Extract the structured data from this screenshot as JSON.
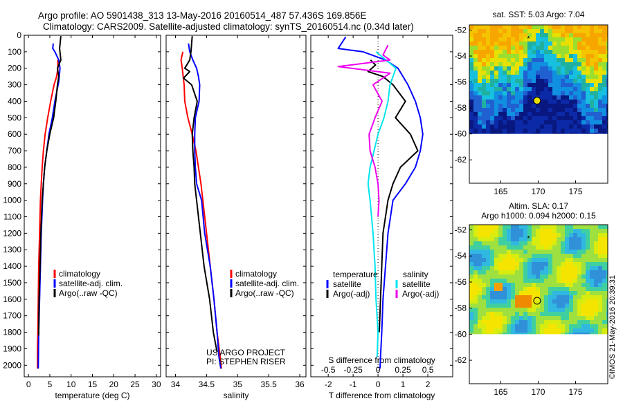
{
  "header": {
    "line1": "Argo profile: AO 5901438_313 13-May-2016 20160514_487 57.436S 169.856E",
    "line2": "Climatology: CARS2009. Satellite-adjusted climatology: synTS_20160514.nc (0.34d later)"
  },
  "colors": {
    "climatology": "#ff0000",
    "satellite": "#0000ff",
    "argo": "#000000",
    "s_satellite": "#00e5ee",
    "s_argo": "#ee00ee"
  },
  "chart_data": [
    {
      "id": "temperature",
      "type": "line",
      "xlabel": "temperature (deg C)",
      "ylabel": "",
      "xlim": [
        -1,
        31
      ],
      "ylim": [
        2070,
        0
      ],
      "xticks": [
        "0",
        "5",
        "10",
        "15",
        "20",
        "25",
        "30"
      ],
      "xtick_values": [
        0,
        5,
        10,
        15,
        20,
        25,
        30
      ],
      "yticks": [
        "0",
        "100",
        "200",
        "300",
        "400",
        "500",
        "600",
        "700",
        "800",
        "900",
        "1000",
        "1100",
        "1200",
        "1300",
        "1400",
        "1500",
        "1600",
        "1700",
        "1800",
        "1900",
        "2000"
      ],
      "ytick_values": [
        0,
        100,
        200,
        300,
        400,
        500,
        600,
        700,
        800,
        900,
        1000,
        1100,
        1200,
        1300,
        1400,
        1500,
        1600,
        1700,
        1800,
        1900,
        2000
      ],
      "legend": [
        "climatology",
        "satellite-adj. clim.",
        "Argo(..raw -QC)"
      ],
      "series": [
        {
          "name": "climatology",
          "color": "#ff0000",
          "x": [
            6.9,
            6.9,
            6.6,
            6.0,
            5.2,
            4.5,
            3.9,
            3.5,
            3.2,
            3.0,
            2.8,
            2.6,
            2.4,
            2.3,
            2.2,
            2.1,
            2.1
          ],
          "y": [
            150,
            200,
            250,
            300,
            400,
            500,
            600,
            700,
            800,
            900,
            1000,
            1200,
            1400,
            1600,
            1800,
            1900,
            2020
          ]
        },
        {
          "name": "satellite-adj. clim.",
          "color": "#0000ff",
          "x": [
            5.8,
            5.7,
            6.2,
            7.1,
            7.4,
            7.1,
            6.2,
            5.6,
            4.8,
            4.3,
            3.8,
            3.5,
            3.3,
            3.0,
            2.8,
            2.6,
            2.4,
            2.3
          ],
          "y": [
            50,
            80,
            100,
            150,
            200,
            280,
            400,
            500,
            600,
            700,
            800,
            900,
            1000,
            1200,
            1400,
            1600,
            1800,
            2020
          ]
        },
        {
          "name": "Argo(..raw -QC)",
          "color": "#000000",
          "x": [
            7.6,
            7.3,
            7.6,
            6.8,
            7.1,
            6.8,
            6.4,
            5.9,
            5.0,
            4.3,
            3.8,
            3.5,
            3.2,
            2.9,
            2.7,
            2.5,
            2.4
          ],
          "y": [
            5,
            80,
            150,
            200,
            250,
            300,
            400,
            500,
            600,
            700,
            800,
            900,
            1000,
            1200,
            1400,
            1600,
            1820
          ]
        }
      ]
    },
    {
      "id": "salinity",
      "type": "line",
      "xlabel": "salinity",
      "ylabel": "",
      "xlim": [
        33.85,
        36.1
      ],
      "ylim": [
        2070,
        0
      ],
      "xticks": [
        "34",
        "34.5",
        "35",
        "35.5",
        "36"
      ],
      "xtick_values": [
        34,
        34.5,
        35,
        35.5,
        36
      ],
      "legend": [
        "climatology",
        "satellite-adj. clim.",
        "Argo(..raw -QC)"
      ],
      "annotations": [
        "US ARGO PROJECT",
        "PI: STEPHEN RISER"
      ],
      "series": [
        {
          "name": "climatology",
          "color": "#ff0000",
          "x": [
            34.12,
            34.09,
            34.11,
            34.14,
            34.15,
            34.2,
            34.27,
            34.33,
            34.37,
            34.41,
            34.44,
            34.5,
            34.56,
            34.62,
            34.67,
            34.72,
            34.74
          ],
          "y": [
            100,
            150,
            200,
            300,
            400,
            500,
            600,
            700,
            800,
            900,
            1000,
            1200,
            1400,
            1600,
            1800,
            1950,
            2020
          ]
        },
        {
          "name": "satellite-adj. clim.",
          "color": "#0000ff",
          "x": [
            34.21,
            34.23,
            34.28,
            34.34,
            34.37,
            34.39,
            34.38,
            34.32,
            34.31,
            34.31,
            34.32,
            34.34,
            34.42,
            34.47,
            34.56,
            34.62,
            34.67,
            34.7,
            34.73
          ],
          "y": [
            50,
            100,
            150,
            200,
            250,
            300,
            400,
            500,
            600,
            700,
            800,
            900,
            1000,
            1200,
            1400,
            1600,
            1800,
            1950,
            2020
          ]
        },
        {
          "name": "Argo(..raw -QC)",
          "color": "#000000",
          "x": [
            34.27,
            34.25,
            34.23,
            34.15,
            34.23,
            34.13,
            34.26,
            34.35,
            34.3,
            34.27,
            34.28,
            34.3,
            34.31,
            34.34,
            34.4,
            34.46,
            34.55,
            34.61,
            34.67
          ],
          "y": [
            5,
            100,
            150,
            200,
            220,
            260,
            300,
            400,
            500,
            600,
            700,
            800,
            900,
            1000,
            1200,
            1400,
            1600,
            1800,
            1920
          ]
        }
      ]
    },
    {
      "id": "difference",
      "type": "line",
      "xlabel": "T difference from climatology",
      "ylabel": "",
      "xlabel2": "S difference from climatology",
      "xlim": [
        -2.7,
        3.0
      ],
      "ylim": [
        2070,
        0
      ],
      "xticks": [
        "-2",
        "-1",
        "0",
        "1",
        "2"
      ],
      "xtick_values": [
        -2,
        -1,
        0,
        1,
        2
      ],
      "xticks2": [
        "-0.5",
        "-0.25",
        "0",
        "0.25",
        "0.5"
      ],
      "xtick2_values": [
        -0.5,
        -0.25,
        0,
        0.25,
        0.5
      ],
      "legend_headers": [
        "temperature",
        "salinity"
      ],
      "legend": [
        "satellite",
        "Argo(-adj)",
        "satellite",
        "Argo(-adj)"
      ],
      "series": [
        {
          "name": "satellite",
          "group": "temperature",
          "color": "#0000ff",
          "x": [
            -1.3,
            -1.6,
            -0.6,
            0.3,
            0.8,
            1.2,
            1.5,
            1.7,
            1.8,
            1.7,
            1.5,
            1.1,
            0.6,
            0.4,
            0.3,
            0.2,
            0.15,
            0.1,
            0.08
          ],
          "y": [
            10,
            80,
            100,
            150,
            200,
            300,
            400,
            500,
            600,
            700,
            800,
            900,
            1000,
            1200,
            1400,
            1600,
            1800,
            1950,
            2020
          ]
        },
        {
          "name": "Argo(-adj)",
          "group": "temperature",
          "color": "#000000",
          "x": [
            -0.3,
            -0.1,
            -0.4,
            0.2,
            0.6,
            1.1,
            0.7,
            1.3,
            1.6,
            0.9,
            0.6,
            0.4,
            0.2,
            0.15,
            0.1,
            0.05
          ],
          "y": [
            150,
            180,
            220,
            250,
            300,
            400,
            500,
            600,
            700,
            800,
            900,
            1000,
            1200,
            1400,
            1600,
            1800
          ]
        },
        {
          "name": "satellite",
          "group": "salinity",
          "color": "#00e5ee",
          "x": [
            -0.02,
            0.18,
            0.12,
            0.1,
            0.06,
            0.0,
            -0.04,
            -0.08,
            -0.1,
            -0.08,
            -0.05,
            -0.03,
            -0.02,
            0.0,
            -0.01
          ],
          "y": [
            100,
            200,
            300,
            400,
            500,
            600,
            700,
            800,
            900,
            1000,
            1200,
            1400,
            1600,
            1800,
            1950
          ]
        },
        {
          "name": "Argo(-adj)",
          "group": "salinity",
          "color": "#ee00ee",
          "x": [
            0.1,
            0.05,
            0.12,
            -0.4,
            0.12,
            -0.05,
            0.04,
            -0.03,
            -0.09,
            -0.08,
            -0.03,
            0.0,
            0.01,
            0.0
          ],
          "y": [
            60,
            120,
            150,
            190,
            230,
            300,
            400,
            500,
            600,
            700,
            800,
            900,
            1000,
            1100
          ]
        }
      ]
    },
    {
      "id": "sst-map",
      "type": "heatmap",
      "title": "sat. SST: 5.03 Argo: 7.04",
      "xlim": [
        160.8,
        179.3
      ],
      "ylim": [
        -63.8,
        -51.6
      ],
      "xticks": [
        "165",
        "170",
        "175"
      ],
      "xtick_values": [
        165,
        170,
        175
      ],
      "yticks": [
        "-52",
        "-54",
        "-56",
        "-58",
        "-60",
        "-62"
      ],
      "ytick_values": [
        -52,
        -54,
        -56,
        -58,
        -60,
        -62
      ],
      "argo_position": [
        169.856,
        -57.436
      ]
    },
    {
      "id": "sla-map",
      "type": "heatmap",
      "title": "Altim. SLA: 0.17",
      "subtitle": "Argo h1000: 0.094 h2000: 0.15",
      "xlim": [
        160.8,
        179.3
      ],
      "ylim": [
        -63.8,
        -51.6
      ],
      "xticks": [
        "165",
        "170",
        "175"
      ],
      "xtick_values": [
        165,
        170,
        175
      ],
      "yticks": [
        "-52",
        "-54",
        "-56",
        "-58",
        "-60",
        "-62"
      ],
      "ytick_values": [
        -52,
        -54,
        -56,
        -58,
        -60,
        -62
      ],
      "argo_position": [
        169.856,
        -57.436
      ]
    }
  ],
  "credit": "©IMOS 21-May-2016 20:39:31"
}
